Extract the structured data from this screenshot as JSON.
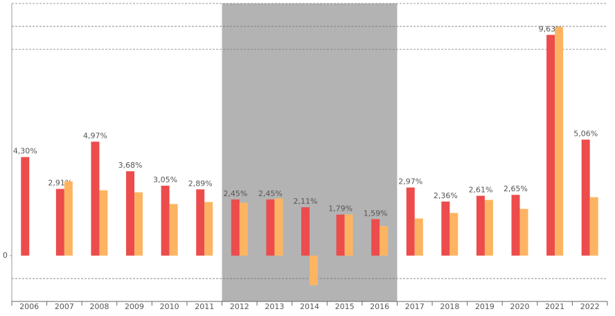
{
  "chart_data": {
    "type": "bar",
    "categories": [
      "2006",
      "2007",
      "2008",
      "2009",
      "2010",
      "2011",
      "2012",
      "2013",
      "2014",
      "2015",
      "2016",
      "2017",
      "2018",
      "2019",
      "2020",
      "2021",
      "2022"
    ],
    "series": [
      {
        "color": "#ec4c4c",
        "values": [
          4.3,
          2.91,
          4.97,
          3.68,
          3.05,
          2.89,
          2.45,
          2.45,
          2.11,
          1.79,
          1.59,
          2.97,
          2.36,
          2.61,
          2.65,
          9.63,
          5.06
        ],
        "value_labels": [
          "4,30%",
          "2,91%",
          "4,97%",
          "3,68%",
          "3,05%",
          "2,89%",
          "2,45%",
          "2,45%",
          "2,11%",
          "1,79%",
          "1,59%",
          "2,97%",
          "2,36%",
          "2,61%",
          "2,65%",
          "9,63%",
          "5,06%"
        ]
      },
      {
        "color": "#fdb462",
        "values": [
          null,
          3.24,
          2.85,
          2.76,
          2.25,
          2.34,
          2.31,
          2.49,
          -1.29,
          1.8,
          1.29,
          1.62,
          1.86,
          2.43,
          2.04,
          9.97,
          2.55
        ]
      }
    ],
    "ylim": [
      -2,
      11
    ],
    "yticks": [
      0
    ],
    "dashed_lines": [
      -1,
      9,
      10,
      11
    ],
    "shaded_range": [
      "2012",
      "2016"
    ],
    "shade_color": "#b3b3b3"
  }
}
